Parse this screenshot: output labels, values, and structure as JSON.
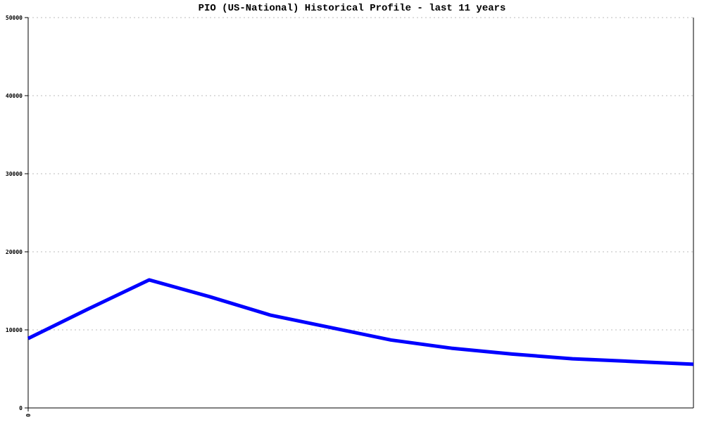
{
  "chart_data": {
    "type": "line",
    "title": "PIO (US-National) Historical Profile - last 11 years",
    "xlabel": "",
    "ylabel": "",
    "x": [
      0,
      1,
      2,
      3,
      4,
      5,
      6,
      7,
      8,
      9,
      10,
      11
    ],
    "x_tick_labels": [
      "0"
    ],
    "ylim": [
      0,
      50000
    ],
    "y_ticks": [
      0,
      10000,
      20000,
      30000,
      40000,
      50000
    ],
    "grid": "horizontal dotted",
    "series": [
      {
        "values": [
          8900,
          12700,
          16400,
          14250,
          11900,
          10300,
          8700,
          7650,
          6900,
          6300,
          5950,
          5600
        ],
        "color": "#0000ff"
      }
    ]
  }
}
